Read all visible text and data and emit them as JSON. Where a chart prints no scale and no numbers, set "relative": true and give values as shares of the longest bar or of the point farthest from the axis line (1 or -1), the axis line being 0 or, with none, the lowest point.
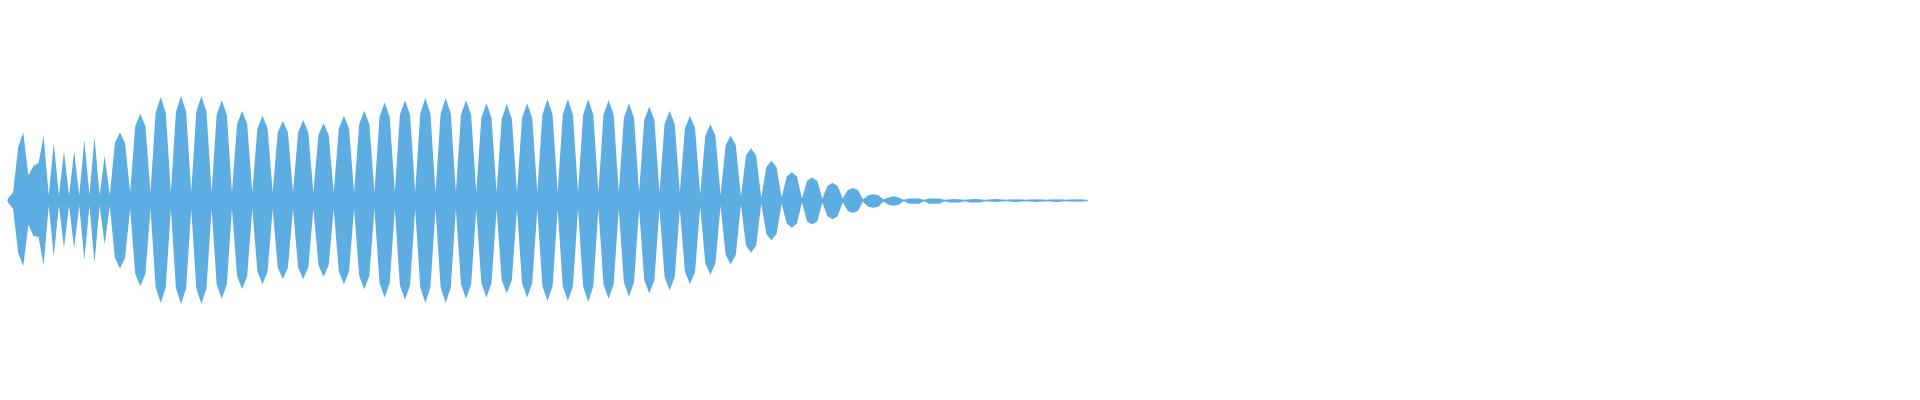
{
  "chart_data": {
    "type": "area",
    "relative": true,
    "categories": [
      null,
      null,
      null,
      null,
      null,
      null,
      null,
      null,
      null,
      null,
      null,
      null,
      null,
      null,
      null,
      null,
      null,
      null,
      null,
      null,
      null,
      null,
      null,
      null,
      null,
      null,
      null,
      null,
      null,
      null,
      null,
      null,
      null,
      null,
      null,
      null,
      null,
      null,
      null,
      null,
      null,
      null,
      null,
      null,
      null,
      null,
      null,
      null,
      null,
      null,
      null,
      null,
      null,
      null,
      null,
      null,
      null,
      null,
      null,
      null,
      null,
      null,
      null,
      null,
      null,
      null,
      null,
      null,
      null,
      null,
      null,
      null,
      null,
      null,
      null,
      null,
      null,
      null,
      null,
      null,
      null,
      null,
      null,
      null,
      null,
      null,
      null,
      null,
      null,
      null,
      null,
      null,
      null,
      null,
      null,
      null,
      null,
      null,
      null,
      null,
      null,
      null,
      null,
      null,
      null,
      null,
      null,
      null,
      null,
      null,
      null,
      null,
      null,
      null,
      null,
      null,
      null,
      null,
      null,
      null,
      null,
      null,
      null,
      null,
      null,
      null,
      null,
      null,
      null,
      null,
      null,
      null,
      null,
      null,
      null,
      null,
      null,
      null,
      null,
      null,
      null,
      null,
      null,
      null,
      null,
      null,
      null,
      null,
      null,
      null,
      null,
      null,
      null,
      null,
      null,
      null,
      null,
      null,
      null,
      null,
      null,
      null,
      null,
      null,
      null,
      null,
      null,
      null,
      null,
      null,
      null,
      null,
      null,
      null,
      null,
      null,
      null,
      null,
      null,
      null,
      null,
      null,
      null,
      null,
      null,
      null,
      null,
      null,
      null,
      null,
      null,
      null,
      null,
      null,
      null,
      null,
      null,
      null,
      null,
      null,
      null,
      null,
      null,
      null,
      null,
      null,
      null,
      null,
      null,
      null,
      null,
      null,
      null
    ],
    "series": [
      {
        "color": "#5dade2",
        "values": [
          0.02,
          0.08,
          0.51,
          0.65,
          0.24,
          0.33,
          0.36,
          0.62,
          0.05,
          0.55,
          0.05,
          0.47,
          0.05,
          0.47,
          0.05,
          0.58,
          0.05,
          0.61,
          0.05,
          0.43,
          0.05,
          0.55,
          0.65,
          0.55,
          0.08,
          0.71,
          0.83,
          0.71,
          0.08,
          0.84,
          0.99,
          0.84,
          0.08,
          0.85,
          1.0,
          0.85,
          0.08,
          0.85,
          1.0,
          0.85,
          0.08,
          0.82,
          0.96,
          0.82,
          0.08,
          0.73,
          0.86,
          0.73,
          0.08,
          0.69,
          0.81,
          0.69,
          0.08,
          0.65,
          0.76,
          0.65,
          0.08,
          0.65,
          0.77,
          0.65,
          0.08,
          0.63,
          0.74,
          0.63,
          0.08,
          0.69,
          0.81,
          0.69,
          0.08,
          0.73,
          0.86,
          0.73,
          0.08,
          0.8,
          0.94,
          0.8,
          0.08,
          0.82,
          0.96,
          0.82,
          0.08,
          0.83,
          0.98,
          0.83,
          0.08,
          0.83,
          0.98,
          0.83,
          0.08,
          0.82,
          0.96,
          0.82,
          0.08,
          0.79,
          0.93,
          0.79,
          0.08,
          0.78,
          0.92,
          0.78,
          0.08,
          0.79,
          0.93,
          0.79,
          0.08,
          0.82,
          0.97,
          0.82,
          0.08,
          0.82,
          0.97,
          0.82,
          0.08,
          0.82,
          0.97,
          0.82,
          0.08,
          0.82,
          0.96,
          0.82,
          0.08,
          0.79,
          0.93,
          0.79,
          0.08,
          0.77,
          0.9,
          0.77,
          0.08,
          0.73,
          0.86,
          0.73,
          0.08,
          0.69,
          0.81,
          0.69,
          0.06,
          0.62,
          0.73,
          0.62,
          0.05,
          0.53,
          0.62,
          0.53,
          0.04,
          0.43,
          0.5,
          0.43,
          0.03,
          0.32,
          0.38,
          0.32,
          0.03,
          0.23,
          0.27,
          0.23,
          0.02,
          0.19,
          0.22,
          0.19,
          0.02,
          0.14,
          0.17,
          0.14,
          0.02,
          0.1,
          0.12,
          0.1,
          0.01,
          0.05,
          0.06,
          0.05,
          0.01,
          0.03,
          0.04,
          0.03,
          0.005,
          0.02,
          0.02,
          0.02,
          0.005,
          0.02,
          0.02,
          0.02,
          0.005,
          0.01,
          0.015,
          0.01,
          0.005,
          0.01,
          0.015,
          0.01,
          0.005,
          0.01,
          0.015,
          0.01,
          0.005,
          0.01,
          0.01,
          0.01,
          0.005,
          0.01,
          0.01,
          0.01,
          0.005,
          0.01,
          0.01,
          0.01,
          0.005,
          0.01,
          0.01,
          0.01,
          0
        ]
      },
      {
        "color": "#5dace2",
        "values": [
          -0.02,
          -0.08,
          -0.5,
          -0.63,
          -0.23,
          -0.34,
          -0.35,
          -0.62,
          -0.05,
          -0.53,
          -0.05,
          -0.45,
          -0.05,
          -0.46,
          -0.05,
          -0.57,
          -0.05,
          -0.6,
          -0.05,
          -0.42,
          -0.05,
          -0.55,
          -0.65,
          -0.55,
          -0.08,
          -0.7,
          -0.82,
          -0.7,
          -0.08,
          -0.83,
          -0.98,
          -0.83,
          -0.08,
          -0.84,
          -0.99,
          -0.84,
          -0.08,
          -0.84,
          -0.99,
          -0.84,
          -0.08,
          -0.8,
          -0.94,
          -0.8,
          -0.08,
          -0.72,
          -0.85,
          -0.72,
          -0.08,
          -0.68,
          -0.8,
          -0.68,
          -0.08,
          -0.64,
          -0.75,
          -0.64,
          -0.08,
          -0.64,
          -0.75,
          -0.64,
          -0.08,
          -0.62,
          -0.73,
          -0.62,
          -0.08,
          -0.68,
          -0.8,
          -0.68,
          -0.08,
          -0.72,
          -0.85,
          -0.72,
          -0.08,
          -0.79,
          -0.93,
          -0.79,
          -0.08,
          -0.81,
          -0.95,
          -0.81,
          -0.08,
          -0.83,
          -0.98,
          -0.83,
          -0.08,
          -0.83,
          -0.98,
          -0.83,
          -0.08,
          -0.8,
          -0.94,
          -0.8,
          -0.08,
          -0.79,
          -0.93,
          -0.79,
          -0.08,
          -0.76,
          -0.89,
          -0.76,
          -0.08,
          -0.79,
          -0.93,
          -0.79,
          -0.08,
          -0.82,
          -0.96,
          -0.82,
          -0.08,
          -0.82,
          -0.96,
          -0.82,
          -0.08,
          -0.82,
          -0.97,
          -0.82,
          -0.08,
          -0.8,
          -0.94,
          -0.8,
          -0.08,
          -0.78,
          -0.92,
          -0.78,
          -0.08,
          -0.76,
          -0.89,
          -0.76,
          -0.08,
          -0.73,
          -0.86,
          -0.73,
          -0.08,
          -0.68,
          -0.8,
          -0.68,
          -0.06,
          -0.6,
          -0.71,
          -0.6,
          -0.05,
          -0.52,
          -0.61,
          -0.52,
          -0.04,
          -0.43,
          -0.5,
          -0.43,
          -0.03,
          -0.32,
          -0.38,
          -0.32,
          -0.03,
          -0.22,
          -0.26,
          -0.22,
          -0.02,
          -0.2,
          -0.23,
          -0.2,
          -0.02,
          -0.15,
          -0.18,
          -0.15,
          -0.02,
          -0.1,
          -0.12,
          -0.1,
          -0.01,
          -0.06,
          -0.07,
          -0.06,
          -0.01,
          -0.04,
          -0.05,
          -0.04,
          -0.005,
          -0.03,
          -0.03,
          -0.03,
          -0.005,
          -0.03,
          -0.03,
          -0.03,
          -0.005,
          -0.02,
          -0.02,
          -0.02,
          -0.005,
          -0.02,
          -0.02,
          -0.02,
          -0.005,
          -0.01,
          -0.015,
          -0.01,
          -0.005,
          -0.01,
          -0.015,
          -0.01,
          -0.005,
          -0.01,
          -0.015,
          -0.01,
          -0.005,
          -0.01,
          -0.015,
          -0.01,
          -0.005,
          -0.01,
          -0.01,
          -0.01,
          0
        ]
      }
    ]
  }
}
